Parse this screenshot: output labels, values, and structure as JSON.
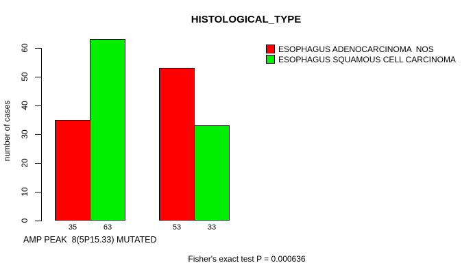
{
  "page": {
    "background_color": "#ffffff",
    "text_color": "#000000"
  },
  "chart_data": {
    "type": "bar",
    "title": "HISTOLOGICAL_TYPE",
    "ylabel": "number of cases",
    "xlabel": "AMP PEAK  8(5P15.33) MUTATED",
    "annotation": "Fisher's exact test P = 0.000636",
    "ylim": [
      0,
      63
    ],
    "yticks": [
      "0",
      "10",
      "20",
      "30",
      "40",
      "50",
      "60"
    ],
    "grid": false,
    "legend_position": "top-right",
    "categories": [
      "",
      ""
    ],
    "series": [
      {
        "key": "adenocarcinoma",
        "name": "ESOPHAGUS ADENOCARCINOMA  NOS",
        "color": "#FF0000",
        "values": [
          35,
          53
        ]
      },
      {
        "key": "squamous-cell-carcinoma",
        "name": "ESOPHAGUS SQUAMOUS CELL CARCINOMA",
        "color": "#00EE00",
        "values": [
          63,
          33
        ]
      }
    ],
    "bar_value_labels": [
      [
        "35",
        "53"
      ],
      [
        "63",
        "33"
      ]
    ]
  }
}
